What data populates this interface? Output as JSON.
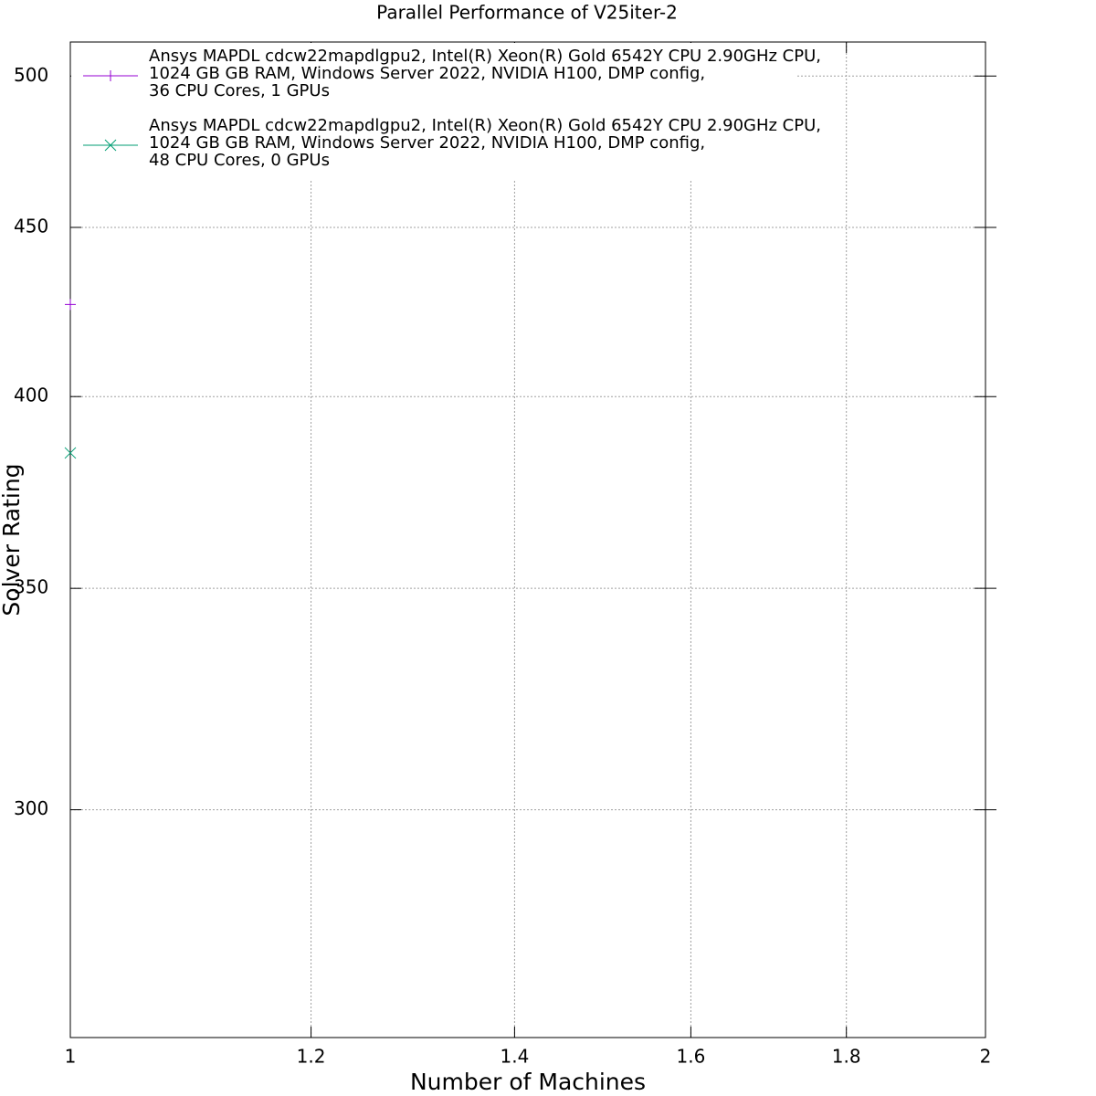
{
  "chart_data": {
    "type": "line",
    "title": "Parallel Performance of V25iter-2",
    "xlabel": "Number of Machines",
    "ylabel": "Solver Rating",
    "xscale": "log",
    "yscale": "log",
    "grid": true,
    "legend": "top-left",
    "xlim": [
      1,
      2
    ],
    "xticks": [
      1,
      1.2,
      1.4,
      1.6,
      1.8,
      2
    ],
    "ylim": [
      256,
      512
    ],
    "yticks": [
      300,
      350,
      400,
      450,
      500
    ],
    "x": [
      1
    ],
    "series": [
      {
        "name": "Ansys MAPDL cdcw22mapdlgpu2, Intel(R) Xeon(R) Gold 6542Y CPU 2.90GHz CPU,\n1024 GB GB RAM, Windows Server 2022, NVIDIA H100, DMP config,\n36 CPU Cores, 1 GPUs",
        "color": "#9400d3",
        "marker": "plus",
        "values": [
          426.5
        ]
      },
      {
        "name": "Ansys MAPDL cdcw22mapdlgpu2, Intel(R) Xeon(R) Gold 6542Y CPU 2.90GHz CPU,\n1024 GB GB RAM, Windows Server 2022, NVIDIA H100, DMP config,\n48 CPU Cores, 0 GPUs",
        "color": "#009e73",
        "marker": "cross",
        "values": [
          384.6
        ]
      }
    ]
  }
}
